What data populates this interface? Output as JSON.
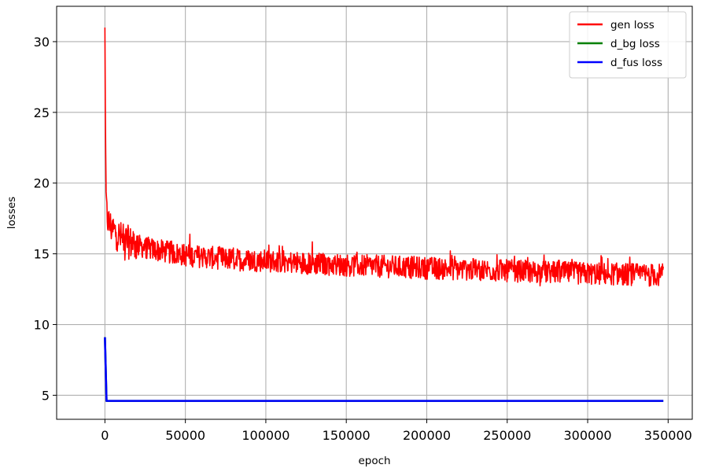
{
  "chart_data": {
    "type": "line",
    "title": "",
    "xlabel": "epoch",
    "ylabel": "losses",
    "xlim": [
      -30000,
      365000
    ],
    "ylim": [
      3.3,
      32.5
    ],
    "xticks": [
      0,
      50000,
      100000,
      150000,
      200000,
      250000,
      300000,
      350000
    ],
    "yticks": [
      5,
      10,
      15,
      20,
      25,
      30
    ],
    "grid": true,
    "legend_position": "upper right",
    "series": [
      {
        "name": "gen loss",
        "color": "#ff0000",
        "x": [
          0,
          300,
          600,
          1000,
          2000,
          3000,
          5000,
          7500,
          10000,
          15000,
          20000,
          30000,
          40000,
          50000,
          60000,
          80000,
          100000,
          125000,
          150000,
          175000,
          200000,
          225000,
          250000,
          275000,
          300000,
          325000,
          347000
        ],
        "y": [
          31.0,
          24.0,
          19.5,
          18.0,
          17.3,
          17.0,
          16.7,
          16.4,
          16.1,
          15.8,
          15.6,
          15.3,
          15.1,
          14.9,
          14.8,
          14.6,
          14.5,
          14.35,
          14.2,
          14.1,
          14.0,
          13.9,
          13.8,
          13.7,
          13.6,
          13.55,
          13.5
        ],
        "noise_amplitude": 0.8
      },
      {
        "name": "d_bg loss",
        "color": "#008000",
        "x": [
          0,
          1000,
          347000
        ],
        "y": [
          9.1,
          4.6,
          4.6
        ]
      },
      {
        "name": "d_fus loss",
        "color": "#0000ff",
        "x": [
          0,
          1000,
          347000
        ],
        "y": [
          9.1,
          4.6,
          4.6
        ]
      }
    ]
  }
}
